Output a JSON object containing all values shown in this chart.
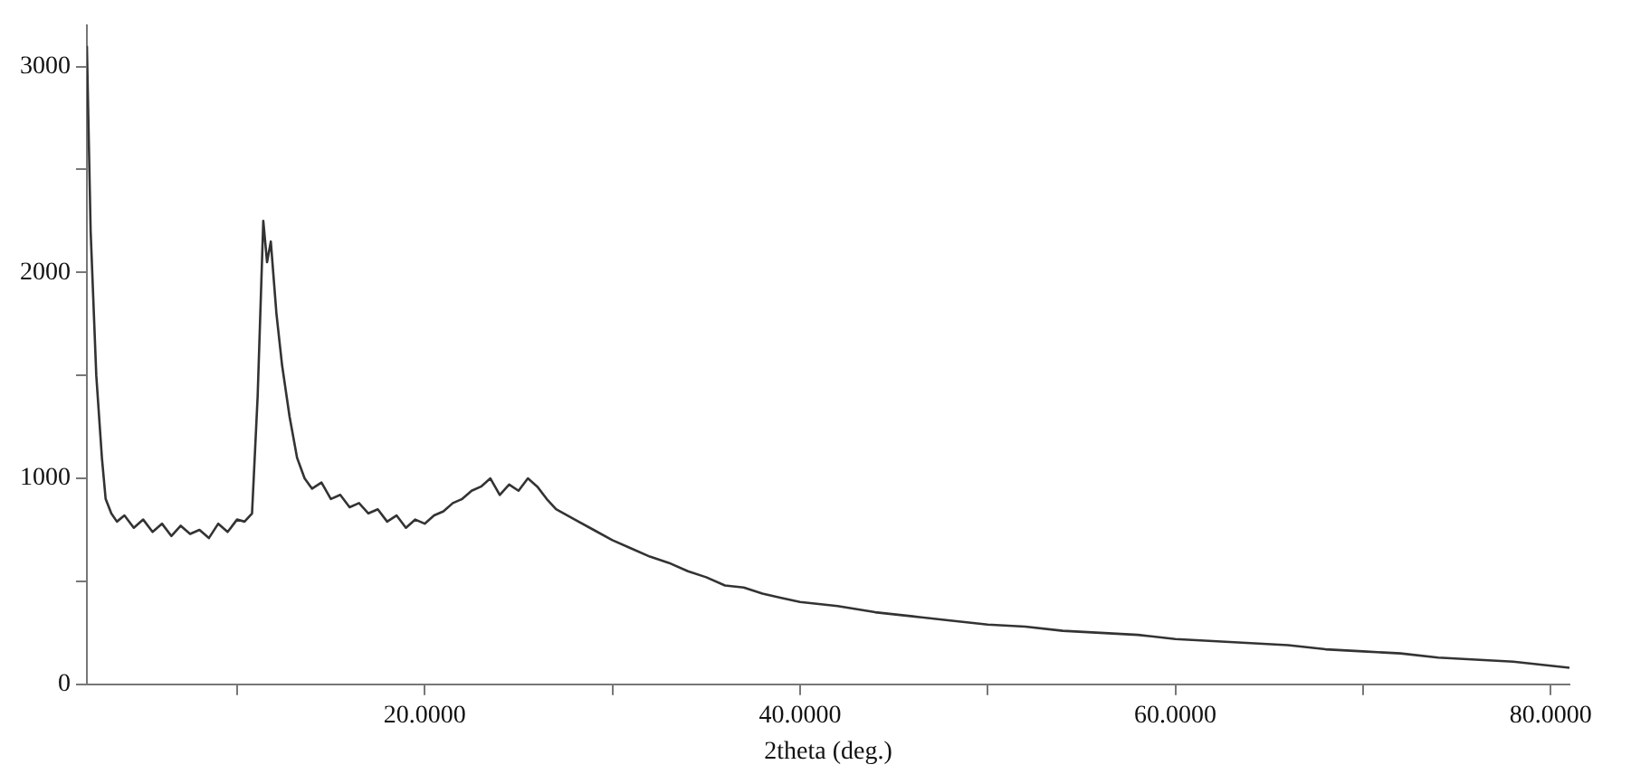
{
  "chart_data": {
    "type": "line",
    "xlabel": "2theta (deg.)",
    "grid": false,
    "legend": false,
    "marker": "none",
    "line_style": "solid",
    "xlim": [
      2,
      81
    ],
    "ylim": [
      0,
      3200
    ],
    "xticks": [
      {
        "value": 10,
        "label": null
      },
      {
        "value": 20,
        "label": "20.0000"
      },
      {
        "value": 30,
        "label": null
      },
      {
        "value": 40,
        "label": "40.0000"
      },
      {
        "value": 50,
        "label": null
      },
      {
        "value": 60,
        "label": "60.0000"
      },
      {
        "value": 70,
        "label": null
      },
      {
        "value": 80,
        "label": "80.0000"
      }
    ],
    "yticks": [
      0,
      {
        "value": 500,
        "label": null
      },
      1000,
      {
        "value": 1500,
        "label": null
      },
      2000,
      {
        "value": 2500,
        "label": null
      },
      3000
    ],
    "series": [
      {
        "color": "#333333",
        "x": [
          2,
          2.2,
          2.5,
          2.8,
          3,
          3.3,
          3.6,
          4,
          4.5,
          5,
          5.5,
          6,
          6.5,
          7,
          7.5,
          8,
          8.5,
          9,
          9.5,
          10,
          10.4,
          10.8,
          11.1,
          11.4,
          11.6,
          11.8,
          12.1,
          12.4,
          12.8,
          13.2,
          13.6,
          14,
          14.5,
          15,
          15.5,
          16,
          16.5,
          17,
          17.5,
          18,
          18.5,
          19,
          19.5,
          20,
          20.5,
          21,
          21.5,
          22,
          22.5,
          23,
          23.5,
          24,
          24.5,
          25,
          25.5,
          26,
          26.5,
          27,
          28,
          29,
          30,
          31,
          32,
          33,
          34,
          35,
          36,
          37,
          38,
          39,
          40,
          42,
          44,
          46,
          48,
          50,
          52,
          54,
          56,
          58,
          60,
          62,
          64,
          66,
          68,
          70,
          72,
          74,
          76,
          78,
          80,
          81
        ],
        "values": [
          3100,
          2200,
          1500,
          1100,
          900,
          830,
          790,
          820,
          760,
          800,
          740,
          780,
          720,
          770,
          730,
          750,
          710,
          780,
          740,
          800,
          790,
          830,
          1400,
          2250,
          2050,
          2150,
          1800,
          1550,
          1300,
          1100,
          1000,
          950,
          980,
          900,
          920,
          860,
          880,
          830,
          850,
          790,
          820,
          760,
          800,
          780,
          820,
          840,
          880,
          900,
          940,
          960,
          1000,
          920,
          970,
          940,
          1000,
          960,
          900,
          850,
          800,
          750,
          700,
          660,
          620,
          590,
          550,
          520,
          480,
          470,
          440,
          420,
          400,
          380,
          350,
          330,
          310,
          290,
          280,
          260,
          250,
          240,
          220,
          210,
          200,
          190,
          170,
          160,
          150,
          130,
          120,
          110,
          90,
          80
        ]
      }
    ]
  }
}
